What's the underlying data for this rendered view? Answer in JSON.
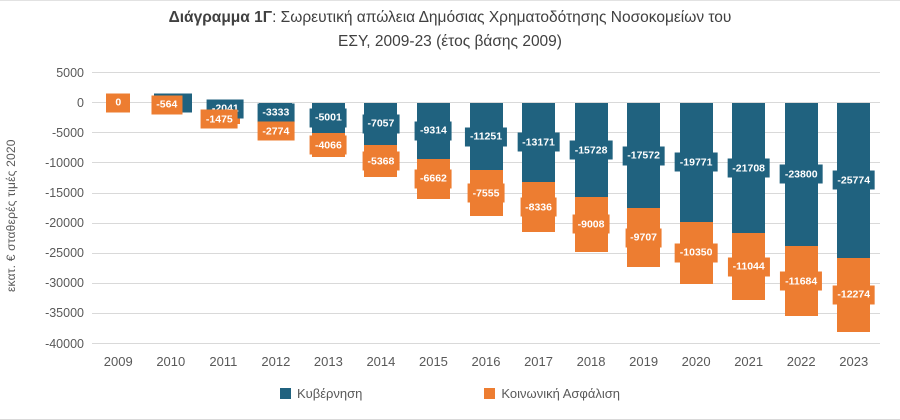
{
  "title": {
    "line1_bold": "Διάγραμμα 1Γ",
    "line1_rest": ": Σωρευτική απώλεια Δημόσιας Χρηματοδότησης Νοσοκομείων του",
    "line2": "ΕΣΥ, 2009-23 (έτος βάσης 2009)"
  },
  "chart_data": {
    "type": "bar",
    "stacked": true,
    "title": "Διάγραμμα 1Γ: Σωρευτική απώλεια Δημόσιας Χρηματοδότησης Νοσοκομείων του ΕΣΥ, 2009-23 (έτος βάσης 2009)",
    "categories": [
      "2009",
      "2010",
      "2011",
      "2012",
      "2013",
      "2014",
      "2015",
      "2016",
      "2017",
      "2018",
      "2019",
      "2020",
      "2021",
      "2022",
      "2023"
    ],
    "series": [
      {
        "name": "Κυβέρνηση",
        "color": "#20627F",
        "values": [
          0,
          null,
          -2041,
          -3333,
          -5001,
          -7057,
          -9314,
          -11251,
          -13171,
          -15728,
          -17572,
          -19771,
          -21708,
          -23800,
          -25774
        ]
      },
      {
        "name": "Κοινωνική Ασφάλιση",
        "color": "#ED7D31",
        "values": [
          0,
          -564,
          -1475,
          -2774,
          -4066,
          -5368,
          -6662,
          -7555,
          -8336,
          -9008,
          -9707,
          -10350,
          -11044,
          -11684,
          -12274
        ]
      }
    ],
    "hidden_labels": [
      {
        "series": "Κυβέρνηση",
        "category": "2010",
        "reason": "covered by the -564 label box in the image"
      }
    ],
    "ylabel": "εκατ. € σταθερές τιμές 2020",
    "ylim": [
      -40000,
      5000
    ],
    "ytick_step": 5000,
    "yticks": [
      "5000",
      "0",
      "-5000",
      "-10000",
      "-15000",
      "-20000",
      "-25000",
      "-30000",
      "-35000",
      "-40000"
    ],
    "grid": true,
    "legend_position": "bottom",
    "data_labels": "white bold values centered in each segment, box filled with series color"
  },
  "colors": {
    "government": "#20627F",
    "social_insurance": "#ED7D31",
    "gridline": "#D9D9D9",
    "axis_text": "#595959",
    "title_text": "#404040"
  }
}
